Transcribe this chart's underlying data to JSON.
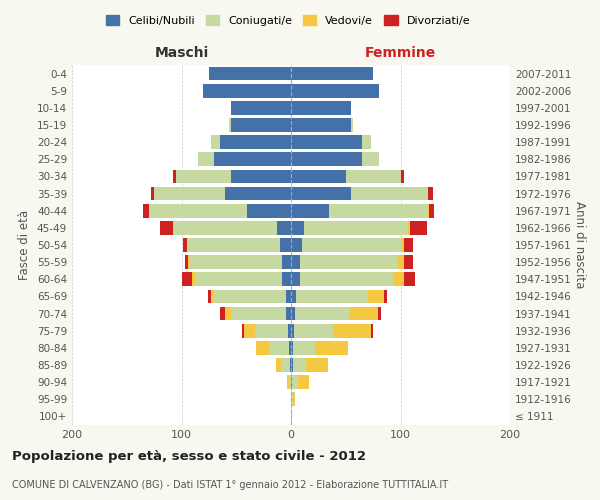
{
  "age_groups": [
    "100+",
    "95-99",
    "90-94",
    "85-89",
    "80-84",
    "75-79",
    "70-74",
    "65-69",
    "60-64",
    "55-59",
    "50-54",
    "45-49",
    "40-44",
    "35-39",
    "30-34",
    "25-29",
    "20-24",
    "15-19",
    "10-14",
    "5-9",
    "0-4"
  ],
  "birth_years": [
    "≤ 1911",
    "1912-1916",
    "1917-1921",
    "1922-1926",
    "1927-1931",
    "1932-1936",
    "1937-1941",
    "1942-1946",
    "1947-1951",
    "1952-1956",
    "1957-1961",
    "1962-1966",
    "1967-1971",
    "1972-1976",
    "1977-1981",
    "1982-1986",
    "1987-1991",
    "1992-1996",
    "1997-2001",
    "2002-2006",
    "2007-2011"
  ],
  "male": {
    "celibe": [
      0,
      0,
      0,
      1,
      2,
      3,
      5,
      5,
      8,
      8,
      10,
      13,
      40,
      60,
      55,
      70,
      65,
      55,
      55,
      80,
      75
    ],
    "coniugato": [
      0,
      0,
      2,
      8,
      18,
      30,
      50,
      65,
      80,
      85,
      85,
      95,
      90,
      65,
      50,
      15,
      8,
      2,
      0,
      0,
      0
    ],
    "vedovo": [
      0,
      0,
      2,
      5,
      12,
      10,
      5,
      3,
      2,
      1,
      0,
      0,
      0,
      0,
      0,
      0,
      0,
      0,
      0,
      0,
      0
    ],
    "divorziato": [
      0,
      0,
      0,
      0,
      0,
      2,
      5,
      3,
      10,
      3,
      4,
      12,
      5,
      3,
      3,
      0,
      0,
      0,
      0,
      0,
      0
    ]
  },
  "female": {
    "nubile": [
      0,
      0,
      1,
      2,
      2,
      3,
      4,
      5,
      8,
      8,
      10,
      12,
      35,
      55,
      50,
      65,
      65,
      55,
      55,
      80,
      75
    ],
    "coniugata": [
      0,
      2,
      5,
      12,
      20,
      35,
      50,
      65,
      85,
      90,
      90,
      95,
      90,
      70,
      50,
      15,
      8,
      2,
      0,
      0,
      0
    ],
    "vedova": [
      1,
      2,
      10,
      20,
      30,
      35,
      25,
      15,
      10,
      5,
      3,
      2,
      1,
      0,
      0,
      0,
      0,
      0,
      0,
      0,
      0
    ],
    "divorziata": [
      0,
      0,
      0,
      0,
      0,
      2,
      3,
      3,
      10,
      8,
      8,
      15,
      5,
      5,
      3,
      0,
      0,
      0,
      0,
      0,
      0
    ]
  },
  "colors": {
    "celibe": "#4472a8",
    "coniugato": "#c5d9a0",
    "vedovo": "#f5c842",
    "divorziato": "#cc2222"
  },
  "legend_labels": [
    "Celibi/Nubili",
    "Coniugati/e",
    "Vedovi/e",
    "Divorziati/e"
  ],
  "title": "Popolazione per età, sesso e stato civile - 2012",
  "subtitle": "COMUNE DI CALVENZANO (BG) - Dati ISTAT 1° gennaio 2012 - Elaborazione TUTTITALIA.IT",
  "xlabel_left": "Maschi",
  "xlabel_right": "Femmine",
  "ylabel_left": "Fasce di età",
  "ylabel_right": "Anni di nascita",
  "xlim": 200,
  "bg_color": "#f8f8f0",
  "plot_bg": "#ffffff"
}
